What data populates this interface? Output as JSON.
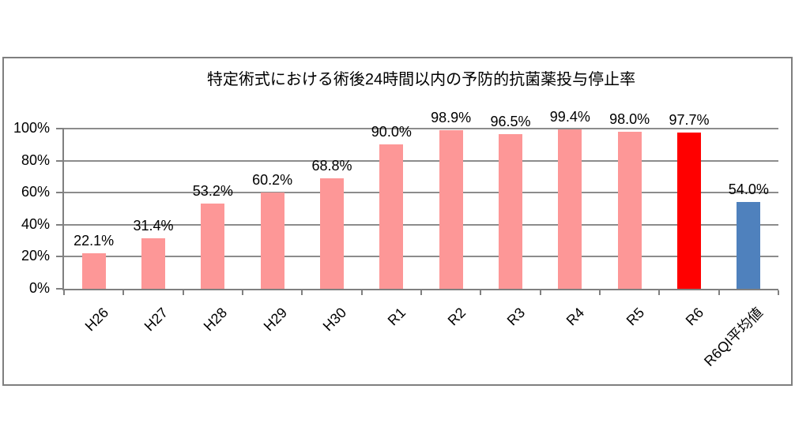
{
  "chart_data": {
    "type": "bar",
    "title": "特定術式における術後24時間以内の予防的抗菌薬投与停止率",
    "categories": [
      "H26",
      "H27",
      "H28",
      "H29",
      "H30",
      "R1",
      "R2",
      "R3",
      "R4",
      "R5",
      "R6",
      "R6QI平均値"
    ],
    "values": [
      22.1,
      31.4,
      53.2,
      60.2,
      68.8,
      90.0,
      98.9,
      96.5,
      99.4,
      98.0,
      97.7,
      54.0
    ],
    "data_labels": [
      "22.1%",
      "31.4%",
      "53.2%",
      "60.2%",
      "68.8%",
      "90.0%",
      "98.9%",
      "96.5%",
      "99.4%",
      "98.0%",
      "97.7%",
      "54.0%"
    ],
    "bar_colors": [
      "#FD9797",
      "#FD9797",
      "#FD9797",
      "#FD9797",
      "#FD9797",
      "#FD9797",
      "#FD9797",
      "#FD9797",
      "#FD9797",
      "#FD9797",
      "#FF0000",
      "#4F81BD"
    ],
    "y_axis": {
      "tick_labels": [
        "100%",
        "80%",
        "60%",
        "40%",
        "20%",
        "0%"
      ],
      "tick_values": [
        100,
        80,
        60,
        40,
        20,
        0
      ],
      "min": 0,
      "max": 100
    },
    "xlabel": "",
    "ylabel": "",
    "x_label_rotation_deg": 45,
    "grid": true,
    "legend": "none",
    "colors": {
      "background": "#FFFFFF",
      "frame_border": "#7F7F7F",
      "gridline": "#8C8C8C",
      "axis": "#808080",
      "text": "#000000"
    }
  }
}
